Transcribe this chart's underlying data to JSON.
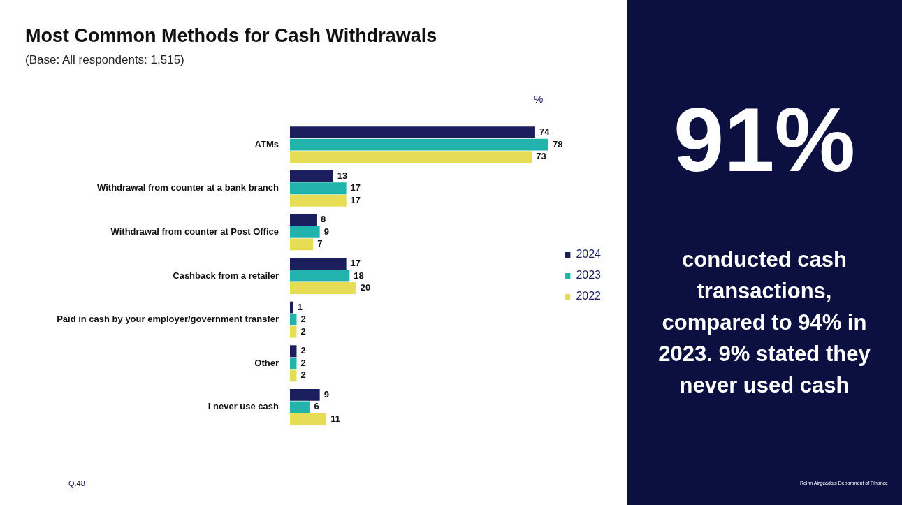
{
  "chart_data": [
    {
      "type": "bar",
      "title": "Most Common Methods for Cash Withdrawals",
      "subtitle": "(Base: All respondents: 1,515)",
      "orientation": "horizontal",
      "categories": [
        "ATMs",
        "Withdrawal from counter at a bank branch",
        "Withdrawal from counter at Post Office",
        "Cashback from a retailer",
        "Paid in cash by your employer/government transfer",
        "Other",
        "I never use cash"
      ],
      "series": [
        {
          "name": "2024",
          "color": "#1b1f5e",
          "values": [
            74,
            13,
            8,
            17,
            1,
            2,
            9
          ]
        },
        {
          "name": "2023",
          "color": "#22b3ad",
          "values": [
            78,
            17,
            9,
            18,
            2,
            2,
            6
          ]
        },
        {
          "name": "2022",
          "color": "#e6dc55",
          "values": [
            73,
            17,
            7,
            20,
            2,
            2,
            11
          ]
        }
      ],
      "tick_labels": "y",
      "data_labels": true,
      "legend": "right",
      "annotations": [
        "%",
        "Q.48"
      ]
    },
    {
      "type": "other",
      "title": "91%",
      "annotations": [
        "conducted cash transactions, compared to 94% in 2023.  9% stated they never used cash",
        "Roinn Airgeadais Department of Finance"
      ]
    }
  ]
}
